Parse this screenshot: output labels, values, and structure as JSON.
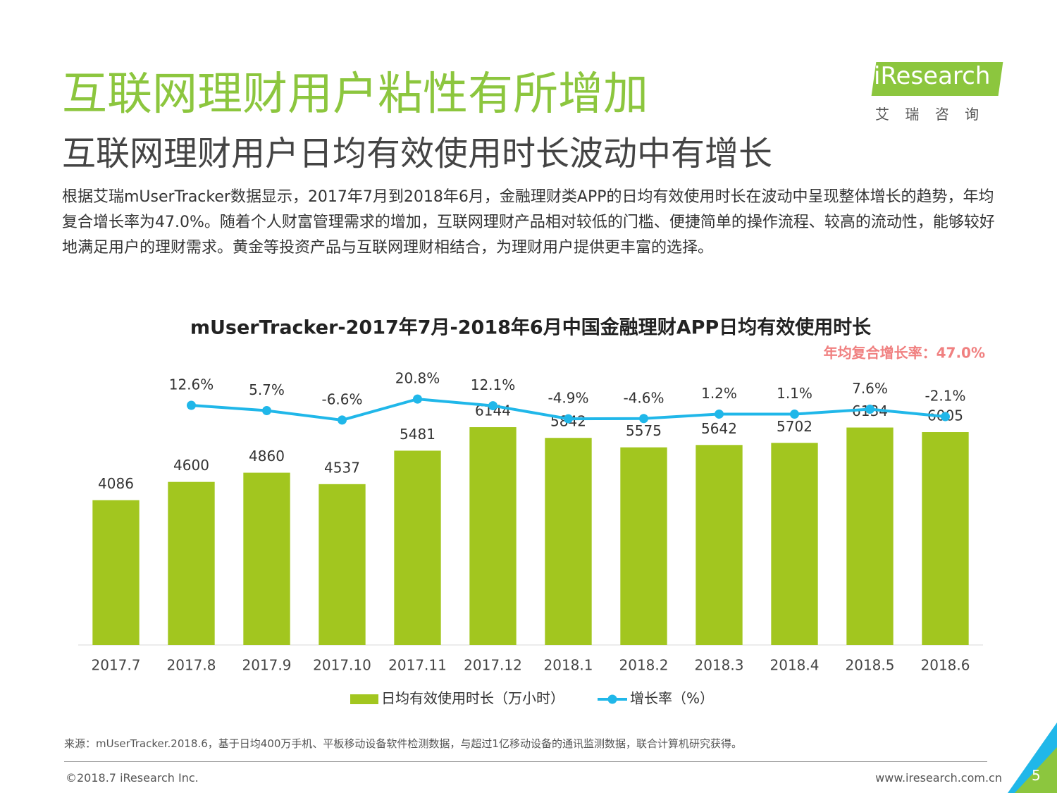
{
  "header": {
    "title": "互联网理财用户粘性有所增加",
    "subtitle": "互联网理财用户日均有效使用时长波动中有增长",
    "paragraph": "根据艾瑞mUserTracker数据显示，2017年7月到2018年6月，金融理财类APP的日均有效使用时长在波动中呈现整体增长的趋势，年均复合增长率为47.0%。随着个人财富管理需求的增加，互联网理财产品相对较低的门槛、便捷简单的操作流程、较高的流动性，能够较好地满足用户的理财需求。黄金等投资产品与互联网理财相结合，为理财用户提供更丰富的选择。",
    "logo": "iResearch",
    "logo_sub": "艾 瑞 咨 询"
  },
  "chart_data": {
    "type": "bar",
    "title": "mUserTracker-2017年7月-2018年6月中国金融理财APP日均有效使用时长",
    "annotation": "年均复合增长率：47.0%",
    "categories": [
      "2017.7",
      "2017.8",
      "2017.9",
      "2017.10",
      "2017.11",
      "2017.12",
      "2018.1",
      "2018.2",
      "2018.3",
      "2018.4",
      "2018.5",
      "2018.6"
    ],
    "series": [
      {
        "name": "日均有效使用时长（万小时）",
        "type": "bar",
        "color": "#a2c61f",
        "values": [
          4086,
          4600,
          4860,
          4537,
          5481,
          6144,
          5842,
          5575,
          5642,
          5702,
          6134,
          6005
        ]
      },
      {
        "name": "增长率（%）",
        "type": "line",
        "axis": "y2",
        "color": "#20b7e9",
        "values": [
          null,
          12.6,
          5.7,
          -6.6,
          20.8,
          12.1,
          -4.9,
          -4.6,
          1.2,
          1.1,
          7.6,
          -2.1
        ],
        "value_labels": [
          null,
          "12.6%",
          "5.7%",
          "-6.6%",
          "20.8%",
          "12.1%",
          "-4.9%",
          "-4.6%",
          "1.2%",
          "1.1%",
          "7.6%",
          "-2.1%"
        ]
      }
    ],
    "ylim": [
      0,
      8650
    ],
    "y2lim": [
      -300,
      100
    ]
  },
  "footer": {
    "source": "来源：mUserTracker.2018.6，基于日均400万手机、平板移动设备软件检测数据，与超过1亿移动设备的通讯监测数据，联合计算机研究获得。",
    "copyright": "©2018.7 iResearch Inc.",
    "url": "www.iresearch.com.cn",
    "page": "5"
  }
}
